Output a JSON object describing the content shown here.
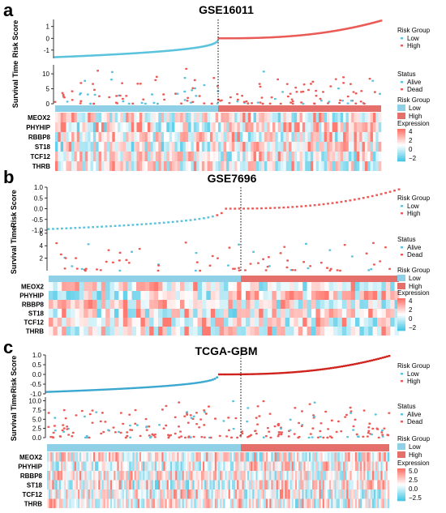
{
  "figure": {
    "panels": [
      {
        "letter": "a",
        "title": "GSE16011",
        "risk_ylabel": "Risk Score",
        "risk_ticks": [
          "1",
          "0",
          "-1"
        ],
        "surv_ylabel": "Survival Time",
        "surv_ticks": [
          "10",
          "5",
          "0"
        ],
        "genes": [
          "MEOX2",
          "PHYHIP",
          "RBBP8",
          "ST18",
          "TCF12",
          "THRB"
        ],
        "legend_risk": {
          "title": "Risk Group",
          "items": [
            "Low",
            "High"
          ]
        },
        "legend_status": {
          "title": "Status",
          "items": [
            "Alive",
            "Dead"
          ]
        },
        "legend_bar": {
          "title": "Risk Group",
          "items": [
            "Low",
            "High"
          ]
        },
        "legend_expr": {
          "title": "Expression",
          "ticks": [
            "4",
            "2",
            "0",
            "−2"
          ]
        }
      },
      {
        "letter": "b",
        "title": "GSE7696",
        "risk_ylabel": "Risk Score",
        "risk_ticks": [
          "1.0",
          "0.5",
          "0.0",
          "-0.5",
          "-1.0"
        ],
        "surv_ylabel": "Survival Time",
        "surv_ticks": [
          "6",
          "4",
          "2"
        ],
        "genes": [
          "MEOX2",
          "PHYHIP",
          "RBBP8",
          "ST18",
          "TCF12",
          "THRB"
        ],
        "legend_risk": {
          "title": "Risk Group",
          "items": [
            "Low",
            "High"
          ]
        },
        "legend_status": {
          "title": "Status",
          "items": [
            "Alive",
            "Dead"
          ]
        },
        "legend_bar": {
          "title": "Risk Group",
          "items": [
            "Low",
            "High"
          ]
        },
        "legend_expr": {
          "title": "Expression",
          "ticks": [
            "4",
            "2",
            "0",
            "−2"
          ]
        }
      },
      {
        "letter": "c",
        "title": "TCGA-GBM",
        "risk_ylabel": "Risk Score",
        "risk_ticks": [
          "1.0",
          "0.5",
          "0.0",
          "-0.5",
          "-1.0"
        ],
        "surv_ylabel": "Survival Time",
        "surv_ticks": [
          "10.0",
          "7.5",
          "5.0",
          "2.5",
          "0.0"
        ],
        "genes": [
          "MEOX2",
          "PHYHIP",
          "RBBP8",
          "ST18",
          "TCF12",
          "THRB"
        ],
        "legend_risk": {
          "title": "Risk Group",
          "items": [
            "Low",
            "High"
          ]
        },
        "legend_status": {
          "title": "Status",
          "items": [
            "Alive",
            "Dead"
          ]
        },
        "legend_bar": {
          "title": "Risk Group",
          "items": [
            "Low",
            "High"
          ]
        },
        "legend_expr": {
          "title": "Expression",
          "ticks": [
            "5.0",
            "2.5",
            "0.0",
            "−2.5"
          ]
        }
      }
    ],
    "colors": {
      "low": "#5bc3dc",
      "high": "#ea5b57",
      "low_dark": "#39a7cf",
      "high_dark": "#d0201a"
    }
  },
  "chart_data": [
    {
      "type": "scatter",
      "title": "GSE16011",
      "panels": [
        "Risk Score",
        "Survival Time",
        "Expression heatmap"
      ],
      "risk_score": {
        "ylim": [
          -1.7,
          1.6
        ],
        "n_low": 120,
        "n_high": 120,
        "min": -1.6,
        "max": 1.5,
        "median": 0.0
      },
      "survival_time": {
        "ylim": [
          0,
          13
        ],
        "max_alive": 12.5,
        "max_dead": 10.0
      },
      "genes": [
        "MEOX2",
        "PHYHIP",
        "RBBP8",
        "ST18",
        "TCF12",
        "THRB"
      ],
      "expression_range": [
        -2,
        4
      ]
    },
    {
      "type": "scatter",
      "title": "GSE7696",
      "panels": [
        "Risk Score",
        "Survival Time",
        "Expression heatmap"
      ],
      "risk_score": {
        "ylim": [
          -1.0,
          1.0
        ],
        "n_low": 38,
        "n_high": 42,
        "min": -0.95,
        "max": 0.9,
        "median": 0.0
      },
      "survival_time": {
        "ylim": [
          0,
          6.5
        ],
        "max_alive": 6.1,
        "max_dead": 4.0
      },
      "genes": [
        "MEOX2",
        "PHYHIP",
        "RBBP8",
        "ST18",
        "TCF12",
        "THRB"
      ],
      "expression_range": [
        -2,
        4
      ]
    },
    {
      "type": "scatter",
      "title": "TCGA-GBM",
      "panels": [
        "Risk Score",
        "Survival Time",
        "Expression heatmap"
      ],
      "risk_score": {
        "ylim": [
          -1.0,
          1.0
        ],
        "n_low": 80,
        "n_high": 80,
        "min": -0.9,
        "max": 0.95,
        "median": 0.0
      },
      "survival_time": {
        "ylim": [
          0,
          11
        ],
        "max_alive": 9.5,
        "max_dead": 10.0
      },
      "genes": [
        "MEOX2",
        "PHYHIP",
        "RBBP8",
        "ST18",
        "TCF12",
        "THRB"
      ],
      "expression_range": [
        -2.5,
        5.0
      ]
    }
  ]
}
